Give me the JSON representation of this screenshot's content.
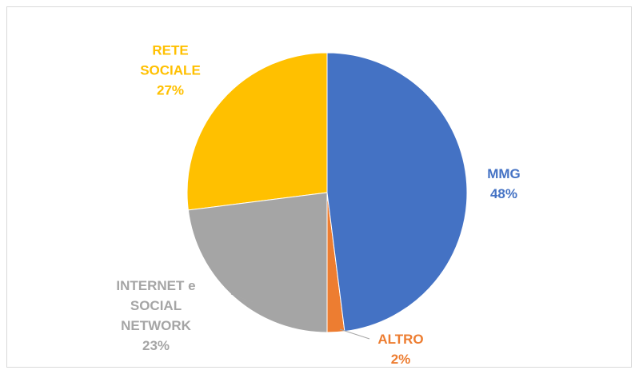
{
  "chart_data": {
    "type": "pie",
    "categories": [
      "MMG",
      "ALTRO",
      "INTERNET e SOCIAL NETWORK",
      "RETE SOCIALE"
    ],
    "values": [
      48,
      2,
      23,
      27
    ],
    "value_labels": [
      "48%",
      "2%",
      "23%",
      "27%"
    ],
    "colors": [
      "#4472c4",
      "#ed7d31",
      "#a5a5a5",
      "#ffc000"
    ]
  }
}
